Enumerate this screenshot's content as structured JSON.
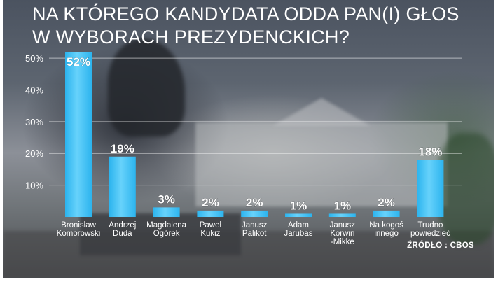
{
  "chart_data": {
    "type": "bar",
    "title_lines": [
      "NA KTÓREGO KANDYDATA ODDA PAN(I) GŁOS",
      "W WYBORACH PREZYDENCKICH?"
    ],
    "categories": [
      [
        "Bronisław",
        "Komorowski"
      ],
      [
        "Andrzej",
        "Duda"
      ],
      [
        "Magdalena",
        "Ogórek"
      ],
      [
        "Paweł",
        "Kukiz"
      ],
      [
        "Janusz",
        "Palikot"
      ],
      [
        "Adam",
        "Jarubas"
      ],
      [
        "Janusz",
        "Korwin",
        "-Mikke"
      ],
      [
        "Na kogoś",
        "innego"
      ],
      [
        "Trudno",
        "powiedzieć"
      ]
    ],
    "values": [
      52,
      19,
      3,
      2,
      2,
      1,
      1,
      2,
      18
    ],
    "value_labels": [
      "52%",
      "19%",
      "3%",
      "2%",
      "2%",
      "1%",
      "1%",
      "2%",
      "18%"
    ],
    "y_ticks": [
      10,
      20,
      30,
      40,
      50
    ],
    "y_tick_labels": [
      "10%",
      "20%",
      "30%",
      "40%",
      "50%"
    ],
    "ylim": [
      0,
      52
    ],
    "xlabel": "",
    "ylabel": "",
    "grid": true,
    "bar_color": "#2cb4ee",
    "bar_color_light": "#67d2fb"
  },
  "source": "ŹRÓDŁO : CBOS"
}
